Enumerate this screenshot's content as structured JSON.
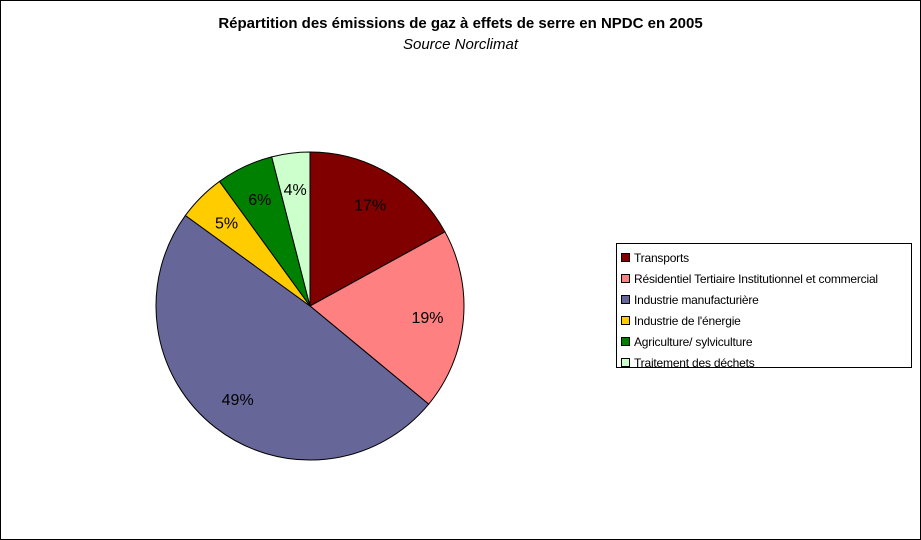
{
  "chart_data": {
    "type": "pie",
    "title": "Répartition des émissions de gaz à effets de serre en NPDC en 2005",
    "subtitle": "Source Norclimat",
    "legend_position": "right",
    "slices": [
      {
        "label": "Transports",
        "value": 17,
        "display": "17%",
        "color": "#800000"
      },
      {
        "label": "Résidentiel Tertiaire Institutionnel et commercial",
        "value": 19,
        "display": "19%",
        "color": "#ff8080"
      },
      {
        "label": "Industrie manufacturière",
        "value": 49,
        "display": "49%",
        "color": "#666699"
      },
      {
        "label": "Industrie de l'énergie",
        "value": 5,
        "display": "5%",
        "color": "#ffcc00"
      },
      {
        "label": "Agriculture/ sylviculture",
        "value": 6,
        "display": "6%",
        "color": "#008000"
      },
      {
        "label": "Traitement des déchets",
        "value": 4,
        "display": "4%",
        "color": "#ccffcc"
      }
    ]
  }
}
